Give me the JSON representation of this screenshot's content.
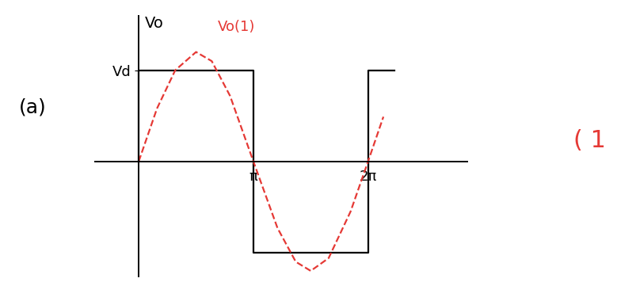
{
  "chart_data": {
    "type": "line",
    "y_label": "Vo",
    "annotations": [
      "(a)",
      "( 1"
    ],
    "xlim": [
      -1.2,
      9.0
    ],
    "ylim": [
      -1.26,
      1.6
    ],
    "xticks": [
      {
        "value": 3.14159,
        "label": "π"
      },
      {
        "value": 6.28318,
        "label": "2π"
      }
    ],
    "yticks": [
      {
        "value": 1,
        "label": "Vd"
      }
    ],
    "grid": false,
    "series": [
      {
        "color": "#000000",
        "line_style": "solid",
        "x": [
          0,
          0,
          3.14159,
          3.14159,
          6.28318,
          6.28318,
          7.0
        ],
        "values": [
          0,
          1,
          1,
          -1,
          -1,
          1,
          1
        ]
      },
      {
        "name": "Vo(1)",
        "color": "#e53935",
        "line_style": "dashed",
        "x": [
          0,
          0.5,
          1.0,
          1.57,
          2.0,
          2.5,
          3.14,
          3.8,
          4.3,
          4.71,
          5.2,
          5.8,
          6.28,
          6.7
        ],
        "values": [
          0,
          0.58,
          1.0,
          1.2,
          1.1,
          0.72,
          0,
          -0.73,
          -1.1,
          -1.2,
          -1.06,
          -0.55,
          0,
          0.49
        ]
      }
    ]
  }
}
